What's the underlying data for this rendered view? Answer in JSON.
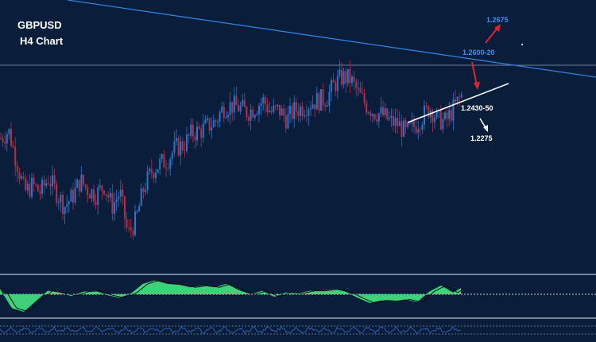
{
  "header": {
    "symbol": "GBPUSD",
    "timeframe": "H4 Chart"
  },
  "annotations": {
    "target_up": "1.2675",
    "resistance": "1.2600-20",
    "support": "1.2430-50",
    "target_down": "1.2275"
  },
  "colors": {
    "background": "#0a1e3b",
    "bull_candle": "#2b74c9",
    "bear_candle": "#b23048",
    "trendline_upper": "#2f82e0",
    "trendline_lower": "#ffffff",
    "histogram_fill": "#3fd07a",
    "arrow_red": "#e0232e",
    "label_blue": "#3d8ff0",
    "label_white": "#ffffff",
    "oscillator_line": "#2f6fd0"
  },
  "chart_data": {
    "type": "candlestick",
    "symbol": "GBPUSD",
    "timeframe": "H4",
    "price_levels": [
      1.2675,
      1.262,
      1.26,
      1.245,
      1.243,
      1.2275
    ],
    "close_path": [
      [
        0,
        1.2445
      ],
      [
        10,
        1.246
      ],
      [
        20,
        1.2395
      ],
      [
        30,
        1.233
      ],
      [
        40,
        1.2345
      ],
      [
        50,
        1.233
      ],
      [
        60,
        1.236
      ],
      [
        70,
        1.233
      ],
      [
        80,
        1.23
      ],
      [
        90,
        1.232
      ],
      [
        100,
        1.2355
      ],
      [
        110,
        1.2335
      ],
      [
        120,
        1.2325
      ],
      [
        130,
        1.2345
      ],
      [
        140,
        1.23
      ],
      [
        150,
        1.233
      ],
      [
        160,
        1.224
      ],
      [
        170,
        1.227
      ],
      [
        180,
        1.234
      ],
      [
        190,
        1.2375
      ],
      [
        200,
        1.239
      ],
      [
        210,
        1.24
      ],
      [
        220,
        1.2425
      ],
      [
        230,
        1.243
      ],
      [
        240,
        1.2455
      ],
      [
        250,
        1.246
      ],
      [
        260,
        1.247
      ],
      [
        270,
        1.248
      ],
      [
        280,
        1.251
      ],
      [
        290,
        1.2515
      ],
      [
        300,
        1.251
      ],
      [
        310,
        1.25
      ],
      [
        320,
        1.251
      ],
      [
        330,
        1.2525
      ],
      [
        340,
        1.25
      ],
      [
        350,
        1.2505
      ],
      [
        360,
        1.2485
      ],
      [
        370,
        1.2505
      ],
      [
        380,
        1.251
      ],
      [
        390,
        1.252
      ],
      [
        400,
        1.2525
      ],
      [
        410,
        1.253
      ],
      [
        420,
        1.256
      ],
      [
        430,
        1.2575
      ],
      [
        440,
        1.257
      ],
      [
        450,
        1.254
      ],
      [
        460,
        1.2515
      ],
      [
        470,
        1.25
      ],
      [
        480,
        1.2495
      ],
      [
        490,
        1.248
      ],
      [
        500,
        1.2475
      ],
      [
        510,
        1.2455
      ],
      [
        520,
        1.247
      ],
      [
        530,
        1.249
      ],
      [
        540,
        1.251
      ],
      [
        550,
        1.2485
      ],
      [
        560,
        1.248
      ],
      [
        570,
        1.251
      ],
      [
        580,
        1.2535
      ]
    ],
    "histogram": [
      [
        0,
        0.3
      ],
      [
        15,
        -0.8
      ],
      [
        30,
        -1.0
      ],
      [
        45,
        -0.4
      ],
      [
        60,
        0.2
      ],
      [
        75,
        0.1
      ],
      [
        90,
        -0.1
      ],
      [
        105,
        0.15
      ],
      [
        120,
        0.2
      ],
      [
        135,
        -0.05
      ],
      [
        150,
        -0.2
      ],
      [
        165,
        0.05
      ],
      [
        180,
        0.6
      ],
      [
        195,
        0.8
      ],
      [
        210,
        0.6
      ],
      [
        225,
        0.55
      ],
      [
        240,
        0.4
      ],
      [
        255,
        0.5
      ],
      [
        270,
        0.4
      ],
      [
        285,
        0.6
      ],
      [
        300,
        0.25
      ],
      [
        315,
        0.0
      ],
      [
        330,
        0.2
      ],
      [
        345,
        -0.15
      ],
      [
        360,
        0.1
      ],
      [
        375,
        0.05
      ],
      [
        390,
        0.2
      ],
      [
        405,
        0.2
      ],
      [
        420,
        0.3
      ],
      [
        435,
        0.15
      ],
      [
        450,
        -0.2
      ],
      [
        465,
        -0.5
      ],
      [
        480,
        -0.35
      ],
      [
        495,
        -0.4
      ],
      [
        510,
        -0.3
      ],
      [
        525,
        -0.45
      ],
      [
        540,
        0.15
      ],
      [
        555,
        0.5
      ],
      [
        570,
        0.1
      ],
      [
        580,
        0.35
      ]
    ]
  }
}
